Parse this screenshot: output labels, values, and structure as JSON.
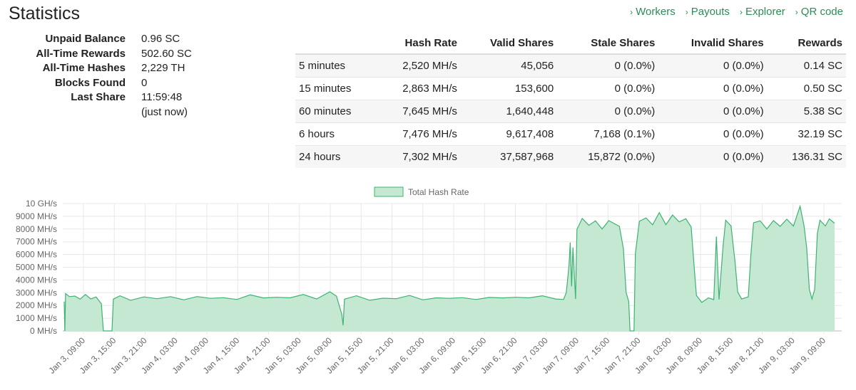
{
  "page": {
    "title": "Statistics"
  },
  "nav": [
    {
      "label": "Workers"
    },
    {
      "label": "Payouts"
    },
    {
      "label": "Explorer"
    },
    {
      "label": "QR code"
    }
  ],
  "summary": [
    {
      "label": "Unpaid Balance",
      "value": "0.96 SC"
    },
    {
      "label": "All-Time Rewards",
      "value": "502.60 SC"
    },
    {
      "label": "All-Time Hashes",
      "value": "2,229 TH"
    },
    {
      "label": "Blocks Found",
      "value": "0"
    },
    {
      "label": "Last Share",
      "value": "11:59:48"
    },
    {
      "label": "",
      "value": "(just now)"
    }
  ],
  "stats_table": {
    "headers": [
      "",
      "Hash Rate",
      "Valid Shares",
      "Stale Shares",
      "Invalid Shares",
      "Rewards"
    ],
    "rows": [
      [
        "5 minutes",
        "2,520 MH/s",
        "45,056",
        "0 (0.0%)",
        "0 (0.0%)",
        "0.14 SC"
      ],
      [
        "15 minutes",
        "2,863 MH/s",
        "153,600",
        "0 (0.0%)",
        "0 (0.0%)",
        "0.50 SC"
      ],
      [
        "60 minutes",
        "7,645 MH/s",
        "1,640,448",
        "0 (0.0%)",
        "0 (0.0%)",
        "5.38 SC"
      ],
      [
        "6 hours",
        "7,476 MH/s",
        "9,617,408",
        "7,168 (0.1%)",
        "0 (0.0%)",
        "32.19 SC"
      ],
      [
        "24 hours",
        "7,302 MH/s",
        "37,587,968",
        "15,872 (0.0%)",
        "0 (0.0%)",
        "136.31 SC"
      ]
    ]
  },
  "colors": {
    "accent": "#2e8b57",
    "series_line": "#3cb371",
    "series_fill": "#c5e8d2"
  },
  "chart_data": {
    "type": "area",
    "legend": {
      "label": "Total Hash Rate",
      "placement": "top-center"
    },
    "y_ticks": [
      "0 MH/s",
      "1000 MH/s",
      "2000 MH/s",
      "3000 MH/s",
      "4000 MH/s",
      "5000 MH/s",
      "6000 MH/s",
      "7000 MH/s",
      "8000 MH/s",
      "9000 MH/s",
      "10 GH/s"
    ],
    "ylim": [
      0,
      10000
    ],
    "x_ticks": [
      "Jan 3, 09:00",
      "Jan 3, 15:00",
      "Jan 3, 21:00",
      "Jan 4, 03:00",
      "Jan 4, 09:00",
      "Jan 4, 15:00",
      "Jan 4, 21:00",
      "Jan 5, 03:00",
      "Jan 5, 09:00",
      "Jan 5, 15:00",
      "Jan 5, 21:00",
      "Jan 6, 03:00",
      "Jan 6, 09:00",
      "Jan 6, 15:00",
      "Jan 6, 21:00",
      "Jan 7, 03:00",
      "Jan 7, 09:00",
      "Jan 7, 15:00",
      "Jan 7, 21:00",
      "Jan 8, 03:00",
      "Jan 8, 09:00",
      "Jan 8, 15:00",
      "Jan 8, 21:00",
      "Jan 9, 03:00",
      "Jan 9, 09:00"
    ],
    "grid": true,
    "series": [
      {
        "name": "Total Hash Rate",
        "unit": "MH/s",
        "points": [
          [
            0.0,
            2400
          ],
          [
            0.05,
            0
          ],
          [
            0.1,
            2900
          ],
          [
            0.4,
            2600
          ],
          [
            0.8,
            2800
          ],
          [
            1.2,
            2500
          ],
          [
            1.6,
            2800
          ],
          [
            2.0,
            2600
          ],
          [
            2.4,
            2700
          ],
          [
            2.8,
            2100
          ],
          [
            2.95,
            0
          ],
          [
            3.6,
            0
          ],
          [
            3.7,
            2500
          ],
          [
            4.2,
            2700
          ],
          [
            5.0,
            2500
          ],
          [
            6.0,
            2700
          ],
          [
            7.0,
            2500
          ],
          [
            8.0,
            2600
          ],
          [
            9.0,
            2500
          ],
          [
            10.0,
            2700
          ],
          [
            11.0,
            2500
          ],
          [
            12.0,
            2700
          ],
          [
            13.0,
            2500
          ],
          [
            14.0,
            2800
          ],
          [
            15.0,
            2500
          ],
          [
            16.0,
            2700
          ],
          [
            17.0,
            2600
          ],
          [
            18.0,
            2800
          ],
          [
            19.0,
            2600
          ],
          [
            20.0,
            3100
          ],
          [
            20.5,
            2700
          ],
          [
            20.9,
            1200
          ],
          [
            21.0,
            500
          ],
          [
            21.1,
            2500
          ],
          [
            22.0,
            2700
          ],
          [
            23.0,
            2500
          ],
          [
            24.0,
            2600
          ],
          [
            25.0,
            2500
          ],
          [
            26.0,
            2700
          ],
          [
            27.0,
            2500
          ],
          [
            28.0,
            2600
          ],
          [
            29.0,
            2500
          ],
          [
            30.0,
            2700
          ],
          [
            31.0,
            2500
          ],
          [
            32.0,
            2600
          ],
          [
            33.0,
            2500
          ],
          [
            34.0,
            2700
          ],
          [
            35.0,
            2600
          ],
          [
            36.0,
            2700
          ],
          [
            37.0,
            2600
          ],
          [
            37.6,
            2500
          ],
          [
            37.8,
            3000
          ],
          [
            38.0,
            5000
          ],
          [
            38.1,
            7000
          ],
          [
            38.2,
            3500
          ],
          [
            38.3,
            6500
          ],
          [
            38.5,
            2600
          ],
          [
            38.6,
            8000
          ],
          [
            39.0,
            8800
          ],
          [
            39.5,
            8200
          ],
          [
            40.0,
            8700
          ],
          [
            40.5,
            8000
          ],
          [
            41.0,
            8600
          ],
          [
            41.8,
            8300
          ],
          [
            42.1,
            6500
          ],
          [
            42.3,
            3000
          ],
          [
            42.5,
            2200
          ],
          [
            42.6,
            0
          ],
          [
            42.9,
            0
          ],
          [
            43.0,
            6000
          ],
          [
            43.3,
            8700
          ],
          [
            43.8,
            8900
          ],
          [
            44.3,
            8300
          ],
          [
            44.8,
            9200
          ],
          [
            45.3,
            8400
          ],
          [
            45.8,
            9100
          ],
          [
            46.3,
            8500
          ],
          [
            46.8,
            8900
          ],
          [
            47.2,
            8200
          ],
          [
            47.5,
            4000
          ],
          [
            47.6,
            2700
          ],
          [
            48.0,
            2300
          ],
          [
            48.5,
            2600
          ],
          [
            48.9,
            2400
          ],
          [
            49.1,
            7500
          ],
          [
            49.3,
            2500
          ],
          [
            49.6,
            6600
          ],
          [
            49.8,
            8600
          ],
          [
            50.2,
            8300
          ],
          [
            50.5,
            5500
          ],
          [
            50.7,
            3000
          ],
          [
            51.0,
            2600
          ],
          [
            51.5,
            2700
          ],
          [
            51.7,
            6000
          ],
          [
            51.9,
            8400
          ],
          [
            52.4,
            8700
          ],
          [
            52.9,
            8000
          ],
          [
            53.4,
            8600
          ],
          [
            53.9,
            8300
          ],
          [
            54.4,
            8800
          ],
          [
            54.9,
            8200
          ],
          [
            55.4,
            9700
          ],
          [
            55.7,
            8300
          ],
          [
            55.9,
            6500
          ],
          [
            56.1,
            3200
          ],
          [
            56.3,
            2600
          ],
          [
            56.5,
            3300
          ],
          [
            56.7,
            7600
          ],
          [
            56.9,
            8600
          ],
          [
            57.3,
            8300
          ],
          [
            57.6,
            8800
          ],
          [
            58.0,
            8400
          ]
        ]
      }
    ]
  }
}
